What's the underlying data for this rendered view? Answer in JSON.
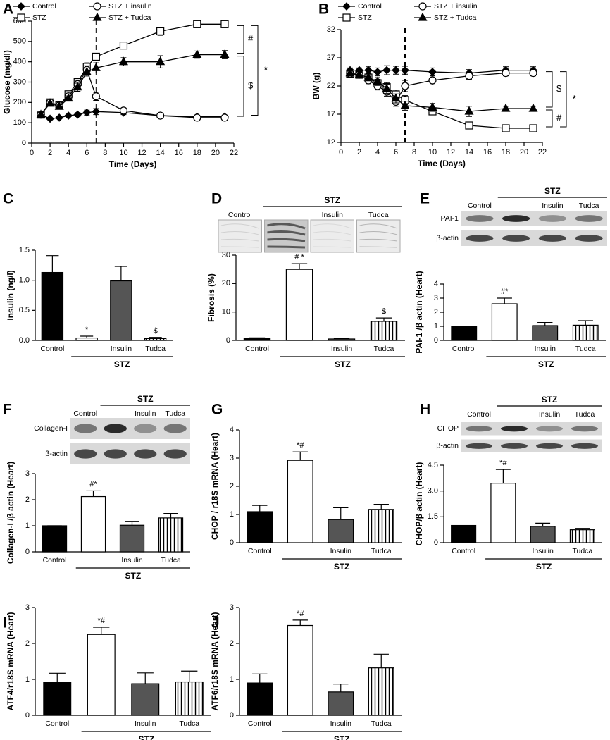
{
  "chart_data": [
    {
      "type": "line",
      "panel": "A",
      "ylabel": "Glucose (mg/dl)",
      "xlabel": "Time (Days)",
      "x": [
        1,
        2,
        3,
        4,
        5,
        6,
        7,
        10,
        14,
        18,
        21
      ],
      "series": [
        {
          "name": "Control",
          "color": "#000000",
          "marker": "diamond-filled",
          "values": [
            140,
            120,
            125,
            135,
            140,
            150,
            155,
            150,
            135,
            130,
            130
          ],
          "errors": [
            5,
            5,
            5,
            5,
            10,
            12,
            15,
            10,
            5,
            5,
            5
          ]
        },
        {
          "name": "STZ",
          "color": "#000000",
          "marker": "square-open",
          "values": [
            140,
            200,
            185,
            240,
            300,
            375,
            425,
            480,
            550,
            585,
            585
          ],
          "errors": [
            8,
            10,
            10,
            15,
            20,
            20,
            15,
            12,
            20,
            10,
            8
          ]
        },
        {
          "name": "STZ + insulin",
          "color": "#000000",
          "marker": "circle-open",
          "values": [
            140,
            200,
            185,
            230,
            290,
            360,
            230,
            160,
            135,
            125,
            125
          ],
          "errors": [
            8,
            10,
            10,
            15,
            20,
            20,
            20,
            12,
            8,
            8,
            8
          ]
        },
        {
          "name": "STZ + Tudca",
          "color": "#000000",
          "marker": "triangle-filled",
          "values": [
            140,
            195,
            180,
            220,
            275,
            350,
            370,
            400,
            400,
            435,
            435
          ],
          "errors": [
            8,
            10,
            10,
            12,
            20,
            20,
            25,
            20,
            30,
            18,
            20
          ]
        }
      ],
      "xlim": [
        0,
        22
      ],
      "xticks": [
        0,
        2,
        4,
        6,
        8,
        10,
        12,
        14,
        16,
        18,
        20,
        22
      ],
      "ylim": [
        0,
        600
      ],
      "yticks": [
        0,
        100,
        200,
        300,
        400,
        500,
        600
      ],
      "vline": 7,
      "annotations": [
        "#",
        "$",
        "*"
      ]
    },
    {
      "type": "line",
      "panel": "B",
      "ylabel": "BW (g)",
      "xlabel": "Time (Days)",
      "x": [
        1,
        2,
        3,
        4,
        5,
        6,
        7,
        10,
        14,
        18,
        21
      ],
      "series": [
        {
          "name": "Control",
          "color": "#000000",
          "marker": "diamond-filled",
          "values": [
            24.8,
            24.8,
            24.8,
            24.5,
            24.8,
            24.8,
            24.8,
            24.5,
            24.3,
            24.8,
            24.8
          ],
          "errors": [
            0.4,
            0.4,
            0.6,
            0.7,
            0.8,
            0.7,
            0.7,
            0.7,
            0.6,
            0.6,
            0.6
          ]
        },
        {
          "name": "STZ",
          "color": "#000000",
          "marker": "square-open",
          "values": [
            24.2,
            24,
            23.5,
            22.5,
            21.8,
            20.5,
            19.5,
            17.5,
            15,
            14.5,
            14.5
          ],
          "errors": [
            0.4,
            0.5,
            0.6,
            0.7,
            0.8,
            0.8,
            0.8,
            0.6,
            0.5,
            0.4,
            0.4
          ]
        },
        {
          "name": "STZ + insulin",
          "color": "#000000",
          "marker": "circle-open",
          "values": [
            24.2,
            24,
            23,
            22,
            21,
            19.2,
            22,
            23,
            23.8,
            24.3,
            24.3
          ],
          "errors": [
            0.4,
            0.5,
            0.6,
            0.7,
            0.8,
            0.8,
            1,
            0.8,
            0.6,
            0.5,
            0.5
          ]
        },
        {
          "name": "STZ + Tudca",
          "color": "#000000",
          "marker": "triangle-filled",
          "values": [
            24.3,
            24,
            23.5,
            22.8,
            21.5,
            19.8,
            18.5,
            18.2,
            17.5,
            18,
            18
          ],
          "errors": [
            0.4,
            0.5,
            0.6,
            0.7,
            0.8,
            0.8,
            0.8,
            0.7,
            0.9,
            0.4,
            0.4
          ]
        }
      ],
      "xlim": [
        0,
        22
      ],
      "xticks": [
        0,
        2,
        4,
        6,
        8,
        10,
        12,
        14,
        16,
        18,
        20,
        22
      ],
      "ylim": [
        12,
        32
      ],
      "yticks": [
        12,
        17,
        22,
        27,
        32
      ],
      "vline": 7,
      "annotations": [
        "$",
        "#",
        "*"
      ]
    },
    {
      "type": "bar",
      "panel": "C",
      "ylabel": "Insulin (ng/l)",
      "categories": [
        "Control",
        null,
        "Insulin",
        "Tudca"
      ],
      "group_label": "STZ",
      "values": [
        1.13,
        0.04,
        0.99,
        0.03
      ],
      "errors": [
        0.28,
        0.03,
        0.24,
        0.02
      ],
      "bar_fills": [
        "#000000",
        "#ffffff",
        "#555555",
        "vertical-stripes"
      ],
      "bar_labels": [
        null,
        "*",
        null,
        "$"
      ],
      "ylim": [
        0,
        1.5
      ],
      "yticks": [
        {
          "value": 0,
          "label": "0.0"
        },
        0.5,
        {
          "value": 1,
          "label": "1.0"
        },
        1.5
      ]
    },
    {
      "type": "bar",
      "panel": "D",
      "ylabel": "Fibrosis (%)",
      "categories": [
        "Control",
        null,
        "Insulin",
        "Tudca"
      ],
      "group_label": "STZ",
      "values": [
        0.7,
        25,
        0.5,
        6.7
      ],
      "errors": [
        0.2,
        2,
        0.2,
        1.2
      ],
      "bar_fills": [
        "#000000",
        "#ffffff",
        "#555555",
        "vertical-stripes"
      ],
      "bar_labels": [
        null,
        "# *",
        null,
        "$"
      ],
      "ylim": [
        0,
        30
      ],
      "yticks": [
        0,
        10,
        20,
        30
      ],
      "header": {
        "lanes": [
          "Control",
          null,
          "Insulin",
          "Tudca"
        ],
        "group": "STZ"
      }
    },
    {
      "type": "bar",
      "panel": "E",
      "ylabel": "PAI-1 /β actin (Heart)",
      "categories": [
        "Control",
        null,
        "Insulin",
        "Tudca"
      ],
      "group_label": "STZ",
      "values": [
        1,
        2.6,
        1.05,
        1.08
      ],
      "errors": [
        0,
        0.4,
        0.22,
        0.32
      ],
      "bar_fills": [
        "#000000",
        "#ffffff",
        "#555555",
        "vertical-stripes"
      ],
      "bar_labels": [
        null,
        "#*",
        null,
        null
      ],
      "ylim": [
        0,
        4
      ],
      "yticks": [
        0,
        1,
        2,
        3,
        4
      ],
      "header": {
        "lanes": [
          "Control",
          null,
          "Insulin",
          "Tudca"
        ],
        "group": "STZ"
      },
      "blot_labels": [
        "PAI-1",
        "β-actin"
      ]
    },
    {
      "type": "bar",
      "panel": "F",
      "ylabel": "Collagen-I /β actin (Heart)",
      "categories": [
        "Control",
        null,
        "Insulin",
        "Tudca"
      ],
      "group_label": "STZ",
      "values": [
        1,
        2.12,
        1.02,
        1.3
      ],
      "errors": [
        0,
        0.22,
        0.15,
        0.17
      ],
      "bar_fills": [
        "#000000",
        "#ffffff",
        "#555555",
        "vertical-stripes"
      ],
      "bar_labels": [
        null,
        "#*",
        null,
        null
      ],
      "ylim": [
        0,
        3
      ],
      "yticks": [
        0,
        1,
        2,
        3
      ],
      "header": {
        "lanes": [
          "Control",
          null,
          "Insulin",
          "Tudca"
        ],
        "group": "STZ"
      },
      "blot_labels": [
        "Collagen-I",
        "β-actin"
      ]
    },
    {
      "type": "bar",
      "panel": "G",
      "ylabel": "CHOP / r18S mRNA (Heart)",
      "categories": [
        "Control",
        null,
        "Insulin",
        "Tudca"
      ],
      "group_label": "STZ",
      "values": [
        1.1,
        2.92,
        0.82,
        1.18
      ],
      "errors": [
        0.22,
        0.3,
        0.42,
        0.18
      ],
      "bar_fills": [
        "#000000",
        "#ffffff",
        "#555555",
        "vertical-stripes"
      ],
      "bar_labels": [
        null,
        "*#",
        null,
        null
      ],
      "ylim": [
        0,
        4
      ],
      "yticks": [
        0,
        1,
        2,
        3,
        4
      ]
    },
    {
      "type": "bar",
      "panel": "H",
      "ylabel": "CHOP/β actin (Heart)",
      "categories": [
        "Control",
        null,
        "Insulin",
        "Tudca"
      ],
      "group_label": "STZ",
      "values": [
        1,
        3.45,
        0.95,
        0.75
      ],
      "errors": [
        0,
        0.8,
        0.18,
        0.08
      ],
      "bar_fills": [
        "#000000",
        "#ffffff",
        "#555555",
        "vertical-stripes"
      ],
      "bar_labels": [
        null,
        "*#",
        null,
        null
      ],
      "ylim": [
        0,
        4.5
      ],
      "yticks": [
        0,
        1.5,
        {
          "value": 3,
          "label": "3.0"
        },
        4.5
      ],
      "header": {
        "lanes": [
          "Control",
          null,
          "Insulin",
          "Tudca"
        ],
        "group": "STZ"
      },
      "blot_labels": [
        "CHOP",
        "β-actin"
      ]
    },
    {
      "type": "bar",
      "panel": "I",
      "ylabel": "ATF4/r18S mRNA (Heart)",
      "categories": [
        "Control",
        null,
        "Insulin",
        "Tudca"
      ],
      "group_label": "STZ",
      "values": [
        0.92,
        2.25,
        0.88,
        0.93
      ],
      "errors": [
        0.25,
        0.2,
        0.3,
        0.3
      ],
      "bar_fills": [
        "#000000",
        "#ffffff",
        "#555555",
        "vertical-stripes"
      ],
      "bar_labels": [
        null,
        "*#",
        null,
        null
      ],
      "ylim": [
        0,
        3
      ],
      "yticks": [
        0,
        1,
        2,
        3
      ]
    },
    {
      "type": "bar",
      "panel": "J",
      "ylabel": "ATF6/r18S mRNA (Heart)",
      "categories": [
        "Control",
        null,
        "Insulin",
        "Tudca"
      ],
      "group_label": "STZ",
      "values": [
        0.9,
        2.5,
        0.65,
        1.32
      ],
      "errors": [
        0.25,
        0.15,
        0.22,
        0.38
      ],
      "bar_fills": [
        "#000000",
        "#ffffff",
        "#555555",
        "vertical-stripes"
      ],
      "bar_labels": [
        null,
        "*#",
        null,
        null
      ],
      "ylim": [
        0,
        3
      ],
      "yticks": [
        0,
        1,
        2,
        3
      ]
    }
  ]
}
